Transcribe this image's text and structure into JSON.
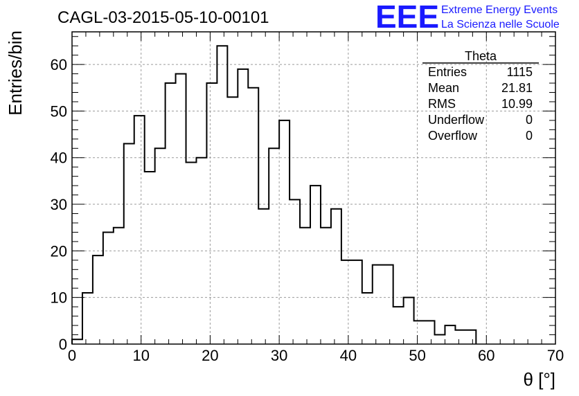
{
  "chart_data": {
    "type": "histogram",
    "title": "CAGL-03-2015-05-10-00101",
    "xlabel": "θ [°]",
    "ylabel": "Entries/bin",
    "xlim": [
      0,
      70
    ],
    "ylim": [
      0,
      67
    ],
    "grid": true,
    "x_ticks": [
      0,
      10,
      20,
      30,
      40,
      50,
      60,
      70
    ],
    "y_ticks": [
      0,
      10,
      20,
      30,
      40,
      50,
      60
    ],
    "bin_width": 1.5,
    "bin_start": 0,
    "values": [
      1,
      11,
      19,
      24,
      25,
      43,
      49,
      37,
      42,
      56,
      58,
      39,
      40,
      56,
      64,
      53,
      59,
      55,
      29,
      42,
      48,
      31,
      25,
      34,
      25,
      29,
      18,
      18,
      11,
      17,
      17,
      8,
      10,
      5,
      5,
      2,
      4,
      3,
      3,
      0,
      0,
      0,
      0,
      0,
      0,
      0
    ],
    "stats_box": {
      "name": "Theta",
      "rows": [
        {
          "label": "Entries",
          "value": "1115"
        },
        {
          "label": "Mean",
          "value": "21.81"
        },
        {
          "label": "RMS",
          "value": "10.99"
        },
        {
          "label": "Underflow",
          "value": "0"
        },
        {
          "label": "Overflow",
          "value": "0"
        }
      ]
    }
  },
  "logo": {
    "mark": "EEE",
    "line1": "Extreme Energy Events",
    "line2": "La Scienza nelle Scuole",
    "color": "#1a1aff"
  }
}
